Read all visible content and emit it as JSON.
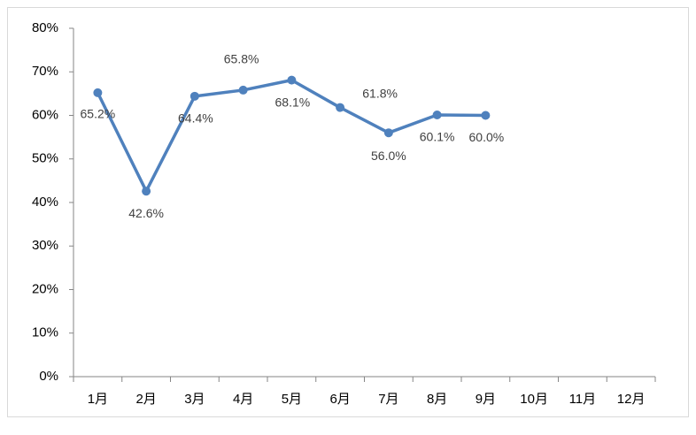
{
  "chart_data": {
    "type": "line",
    "categories": [
      "1月",
      "2月",
      "3月",
      "4月",
      "5月",
      "6月",
      "7月",
      "8月",
      "9月",
      "10月",
      "11月",
      "12月"
    ],
    "series": [
      {
        "color": "#4f81bd",
        "values": [
          65.2,
          42.6,
          64.4,
          65.8,
          68.1,
          61.8,
          56.0,
          60.1,
          60.0,
          null,
          null,
          null
        ],
        "value_labels": [
          "65.2%",
          "42.6%",
          "64.4%",
          "65.8%",
          "68.1%",
          "61.8%",
          "56.0%",
          "60.1%",
          "60.0%",
          null,
          null,
          null
        ]
      }
    ],
    "ylim": [
      0,
      80
    ],
    "yticks": [
      {
        "value": 0,
        "label": "0%"
      },
      {
        "value": 10,
        "label": "10%"
      },
      {
        "value": 20,
        "label": "20%"
      },
      {
        "value": 30,
        "label": "30%"
      },
      {
        "value": 40,
        "label": "40%"
      },
      {
        "value": 50,
        "label": "50%"
      },
      {
        "value": 60,
        "label": "60%"
      },
      {
        "value": 70,
        "label": "70%"
      },
      {
        "value": 80,
        "label": "80%"
      }
    ],
    "grid": false
  }
}
